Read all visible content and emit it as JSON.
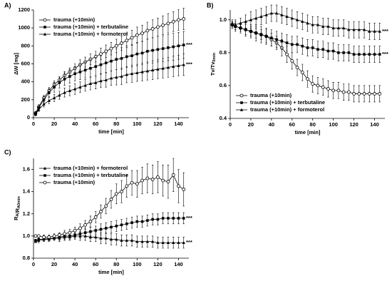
{
  "chart_data": [
    {
      "type": "line",
      "panel": "A)",
      "xlabel": "time [min]",
      "ylabel": "ΔW [mg]",
      "legend": "upper left",
      "xlim": [
        0,
        150
      ],
      "xticks": [
        0,
        20,
        40,
        60,
        80,
        100,
        120,
        140
      ],
      "ylim": [
        0,
        1200
      ],
      "yticks": [
        0,
        200,
        400,
        600,
        800,
        1000,
        1200
      ],
      "x": [
        2,
        5,
        10,
        15,
        20,
        25,
        30,
        35,
        40,
        45,
        50,
        55,
        60,
        65,
        70,
        75,
        80,
        85,
        90,
        95,
        100,
        105,
        110,
        115,
        120,
        125,
        130,
        135,
        140,
        145
      ],
      "series": [
        {
          "name": "trauma (+10min)",
          "color": "#000000",
          "marker": "circle-open",
          "values": [
            50,
            120,
            220,
            300,
            370,
            420,
            470,
            510,
            550,
            590,
            620,
            650,
            680,
            710,
            740,
            770,
            800,
            830,
            860,
            890,
            920,
            940,
            970,
            990,
            1010,
            1030,
            1050,
            1070,
            1090,
            1100
          ],
          "errors": [
            20,
            25,
            30,
            35,
            40,
            40,
            45,
            45,
            50,
            55,
            55,
            60,
            60,
            65,
            70,
            70,
            75,
            80,
            80,
            85,
            90,
            90,
            95,
            100,
            100,
            105,
            110,
            110,
            115,
            120
          ]
        },
        {
          "name": "trauma (+10min) + terbutaline",
          "color": "#000000",
          "marker": "square",
          "annotation": "***",
          "values": [
            40,
            110,
            200,
            280,
            340,
            390,
            430,
            460,
            490,
            510,
            530,
            550,
            570,
            590,
            610,
            630,
            650,
            660,
            680,
            690,
            710,
            720,
            740,
            750,
            760,
            770,
            780,
            790,
            800,
            810
          ],
          "errors": [
            20,
            25,
            35,
            45,
            55,
            60,
            70,
            75,
            80,
            85,
            90,
            95,
            100,
            100,
            105,
            110,
            115,
            120,
            120,
            125,
            130,
            130,
            135,
            140,
            140,
            145,
            145,
            150,
            150,
            150
          ]
        },
        {
          "name": "trauma (+10min) + formoterol",
          "color": "#000000",
          "marker": "triangle",
          "annotation": "***",
          "values": [
            40,
            90,
            150,
            190,
            220,
            250,
            280,
            300,
            320,
            340,
            360,
            380,
            390,
            410,
            420,
            440,
            450,
            460,
            480,
            490,
            500,
            510,
            520,
            530,
            540,
            550,
            560,
            570,
            580,
            590
          ],
          "errors": [
            15,
            20,
            30,
            35,
            40,
            45,
            50,
            55,
            60,
            60,
            65,
            70,
            70,
            75,
            80,
            80,
            85,
            90,
            90,
            95,
            95,
            100,
            100,
            105,
            105,
            110,
            110,
            115,
            115,
            120
          ]
        }
      ]
    },
    {
      "type": "line",
      "panel": "B)",
      "xlabel": "time [min]",
      "ylabel": "Tv/Tv",
      "ylabel_sub": "0min",
      "legend": "lower left",
      "xlim": [
        0,
        150
      ],
      "xticks": [
        0,
        20,
        40,
        60,
        80,
        100,
        120,
        140
      ],
      "ylim": [
        0.4,
        1.06
      ],
      "yticks": [
        0.4,
        {
          "value": 0.6,
          "label": "0.6"
        },
        {
          "value": 0.8,
          "label": "0.8"
        },
        {
          "value": 1.0,
          "label": "1.0"
        }
      ],
      "x": [
        2,
        5,
        10,
        15,
        20,
        25,
        30,
        35,
        40,
        45,
        50,
        55,
        60,
        65,
        70,
        75,
        80,
        85,
        90,
        95,
        100,
        105,
        110,
        115,
        120,
        125,
        130,
        135,
        140,
        145
      ],
      "series": [
        {
          "name": "trauma (+10min)",
          "color": "#000000",
          "marker": "circle-open",
          "values": [
            0.97,
            0.96,
            0.95,
            0.94,
            0.93,
            0.92,
            0.91,
            0.9,
            0.88,
            0.86,
            0.83,
            0.79,
            0.75,
            0.71,
            0.68,
            0.64,
            0.61,
            0.6,
            0.59,
            0.58,
            0.57,
            0.57,
            0.56,
            0.56,
            0.55,
            0.55,
            0.55,
            0.55,
            0.55,
            0.55
          ],
          "errors": [
            0.02,
            0.02,
            0.02,
            0.03,
            0.03,
            0.03,
            0.03,
            0.04,
            0.04,
            0.04,
            0.05,
            0.05,
            0.05,
            0.05,
            0.05,
            0.05,
            0.05,
            0.05,
            0.05,
            0.05,
            0.05,
            0.05,
            0.05,
            0.05,
            0.05,
            0.05,
            0.05,
            0.05,
            0.05,
            0.05
          ]
        },
        {
          "name": "trauma (+10min) + terbutaline",
          "color": "#000000",
          "marker": "square",
          "annotation": "***",
          "values": [
            0.97,
            0.96,
            0.95,
            0.94,
            0.93,
            0.92,
            0.91,
            0.9,
            0.89,
            0.88,
            0.87,
            0.86,
            0.85,
            0.85,
            0.84,
            0.83,
            0.83,
            0.82,
            0.82,
            0.81,
            0.81,
            0.8,
            0.8,
            0.8,
            0.79,
            0.79,
            0.79,
            0.79,
            0.79,
            0.79
          ],
          "errors": [
            0.02,
            0.03,
            0.03,
            0.04,
            0.04,
            0.05,
            0.05,
            0.05,
            0.05,
            0.05,
            0.05,
            0.05,
            0.05,
            0.05,
            0.05,
            0.05,
            0.05,
            0.05,
            0.05,
            0.05,
            0.05,
            0.05,
            0.05,
            0.05,
            0.05,
            0.05,
            0.05,
            0.05,
            0.05,
            0.05
          ]
        },
        {
          "name": "trauma (+10min) + formoterol",
          "color": "#000000",
          "marker": "triangle",
          "annotation": "***",
          "values": [
            0.98,
            0.97,
            0.98,
            0.99,
            1.0,
            1.01,
            1.02,
            1.03,
            1.04,
            1.04,
            1.03,
            1.02,
            1.01,
            1.0,
            0.99,
            0.98,
            0.97,
            0.97,
            0.96,
            0.96,
            0.95,
            0.95,
            0.95,
            0.94,
            0.94,
            0.94,
            0.94,
            0.93,
            0.93,
            0.93
          ],
          "errors": [
            0.02,
            0.03,
            0.03,
            0.04,
            0.05,
            0.05,
            0.05,
            0.05,
            0.05,
            0.05,
            0.05,
            0.05,
            0.05,
            0.05,
            0.05,
            0.05,
            0.05,
            0.05,
            0.05,
            0.05,
            0.05,
            0.05,
            0.05,
            0.05,
            0.05,
            0.05,
            0.05,
            0.05,
            0.05,
            0.05
          ]
        }
      ]
    },
    {
      "type": "line",
      "panel": "C)",
      "xlabel": "time [min]",
      "ylabel": "R",
      "ylabel_sub": "A",
      "ylabel_mid": "/R",
      "ylabel_sub2": "A0min",
      "legend": "upper left",
      "xlim": [
        0,
        150
      ],
      "xticks": [
        0,
        20,
        40,
        60,
        80,
        100,
        120,
        140
      ],
      "ylim": [
        0.8,
        1.7
      ],
      "yticks": [
        0.8,
        {
          "value": 1.0,
          "label": "1.0"
        },
        1.2,
        1.4,
        1.6
      ],
      "x": [
        2,
        5,
        10,
        15,
        20,
        25,
        30,
        35,
        40,
        45,
        50,
        55,
        60,
        65,
        70,
        75,
        80,
        85,
        90,
        95,
        100,
        105,
        110,
        115,
        120,
        125,
        130,
        135,
        140,
        145
      ],
      "series": [
        {
          "name": "trauma (+10min) + formoterol",
          "color": "#000000",
          "marker": "triangle",
          "annotation": "***",
          "values": [
            0.95,
            0.96,
            0.97,
            0.97,
            0.98,
            0.98,
            0.99,
            0.99,
            1.0,
            1.0,
            1.0,
            0.99,
            0.99,
            0.98,
            0.98,
            0.97,
            0.97,
            0.96,
            0.96,
            0.96,
            0.95,
            0.95,
            0.95,
            0.95,
            0.94,
            0.94,
            0.94,
            0.94,
            0.94,
            0.94
          ],
          "errors": [
            0.01,
            0.02,
            0.02,
            0.02,
            0.02,
            0.03,
            0.03,
            0.03,
            0.03,
            0.04,
            0.04,
            0.04,
            0.04,
            0.05,
            0.05,
            0.05,
            0.05,
            0.05,
            0.05,
            0.05,
            0.05,
            0.05,
            0.05,
            0.05,
            0.05,
            0.05,
            0.05,
            0.05,
            0.05,
            0.05
          ]
        },
        {
          "name": "trauma (+10min) + terbutaline",
          "color": "#000000",
          "marker": "square",
          "annotation": "***",
          "values": [
            0.96,
            0.97,
            0.97,
            0.98,
            0.98,
            0.99,
            1.0,
            1.0,
            1.01,
            1.02,
            1.03,
            1.04,
            1.05,
            1.06,
            1.07,
            1.08,
            1.09,
            1.1,
            1.11,
            1.12,
            1.13,
            1.13,
            1.14,
            1.15,
            1.15,
            1.16,
            1.16,
            1.16,
            1.16,
            1.16
          ],
          "errors": [
            0.01,
            0.02,
            0.02,
            0.02,
            0.02,
            0.03,
            0.03,
            0.03,
            0.03,
            0.04,
            0.04,
            0.04,
            0.04,
            0.05,
            0.05,
            0.05,
            0.05,
            0.05,
            0.05,
            0.05,
            0.05,
            0.05,
            0.05,
            0.05,
            0.05,
            0.05,
            0.05,
            0.05,
            0.05,
            0.05
          ]
        },
        {
          "name": "trauma (+10min)",
          "color": "#000000",
          "marker": "circle-open",
          "values": [
            1.0,
            1.0,
            0.99,
            0.99,
            1.0,
            1.01,
            1.02,
            1.03,
            1.05,
            1.07,
            1.1,
            1.13,
            1.17,
            1.22,
            1.27,
            1.33,
            1.38,
            1.4,
            1.45,
            1.48,
            1.47,
            1.5,
            1.52,
            1.51,
            1.53,
            1.5,
            1.49,
            1.55,
            1.45,
            1.42
          ],
          "errors": [
            0.01,
            0.01,
            0.02,
            0.02,
            0.02,
            0.02,
            0.03,
            0.03,
            0.03,
            0.04,
            0.04,
            0.05,
            0.05,
            0.06,
            0.07,
            0.08,
            0.09,
            0.1,
            0.1,
            0.11,
            0.12,
            0.12,
            0.13,
            0.13,
            0.14,
            0.14,
            0.15,
            0.15,
            0.15,
            0.15
          ]
        }
      ]
    }
  ]
}
